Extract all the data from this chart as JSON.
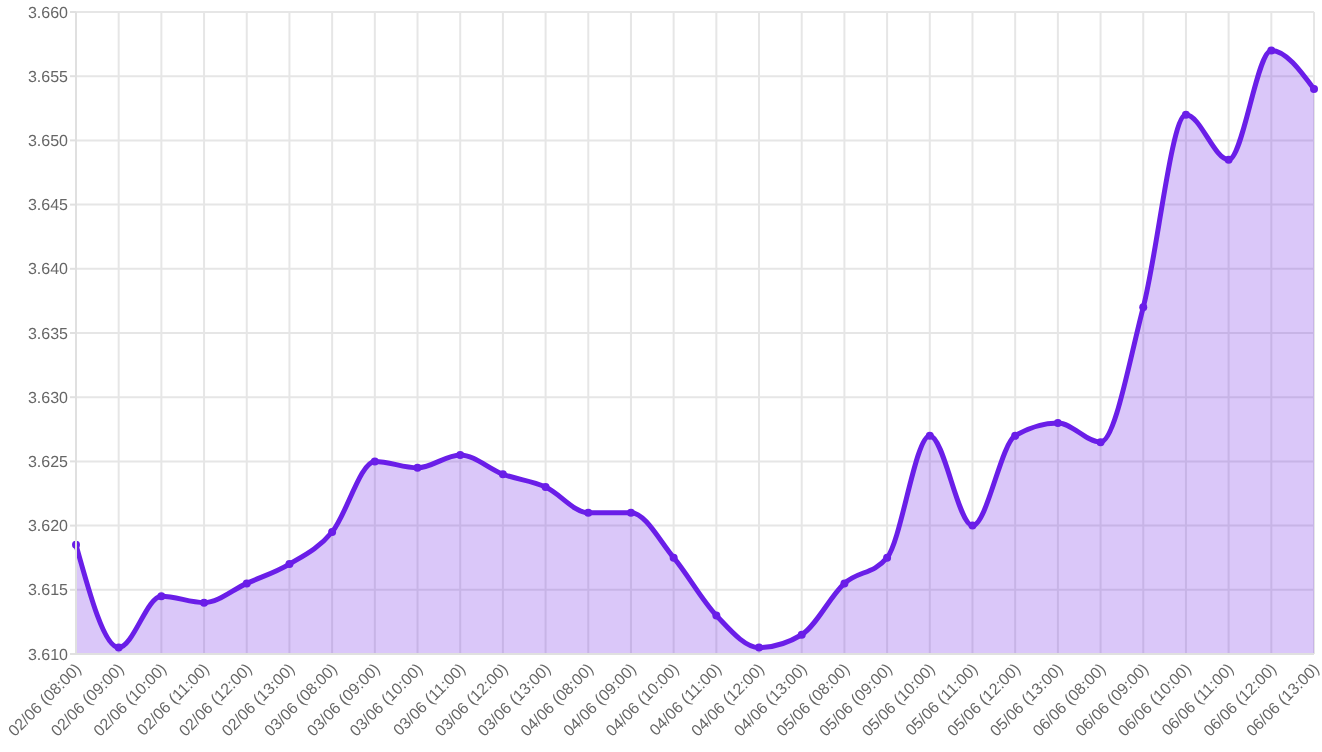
{
  "chart_data": {
    "type": "area",
    "categories": [
      "02/06 (08:00)",
      "02/06 (09:00)",
      "02/06 (10:00)",
      "02/06 (11:00)",
      "02/06 (12:00)",
      "02/06 (13:00)",
      "03/06 (08:00)",
      "03/06 (09:00)",
      "03/06 (10:00)",
      "03/06 (11:00)",
      "03/06 (12:00)",
      "03/06 (13:00)",
      "04/06 (08:00)",
      "04/06 (09:00)",
      "04/06 (10:00)",
      "04/06 (11:00)",
      "04/06 (12:00)",
      "04/06 (13:00)",
      "05/06 (08:00)",
      "05/06 (09:00)",
      "05/06 (10:00)",
      "05/06 (11:00)",
      "05/06 (12:00)",
      "05/06 (13:00)",
      "06/06 (08:00)",
      "06/06 (09:00)",
      "06/06 (10:00)",
      "06/06 (11:00)",
      "06/06 (12:00)",
      "06/06 (13:00)"
    ],
    "series": [
      {
        "color": "#6a1ee8",
        "values": [
          3.6185,
          3.6105,
          3.6145,
          3.614,
          3.6155,
          3.617,
          3.6195,
          3.625,
          3.6245,
          3.6255,
          3.624,
          3.623,
          3.621,
          3.621,
          3.6175,
          3.613,
          3.6105,
          3.6115,
          3.6155,
          3.6175,
          3.627,
          3.62,
          3.627,
          3.628,
          3.6265,
          3.637,
          3.652,
          3.6485,
          3.657,
          3.654
        ]
      }
    ],
    "ylim": [
      3.61,
      3.66
    ],
    "yticks": [
      {
        "value": 3.61,
        "label": "3.610"
      },
      {
        "value": 3.615,
        "label": "3.615"
      },
      {
        "value": 3.62,
        "label": "3.620"
      },
      {
        "value": 3.625,
        "label": "3.625"
      },
      {
        "value": 3.63,
        "label": "3.630"
      },
      {
        "value": 3.635,
        "label": "3.635"
      },
      {
        "value": 3.64,
        "label": "3.640"
      },
      {
        "value": 3.645,
        "label": "3.645"
      },
      {
        "value": 3.65,
        "label": "3.650"
      },
      {
        "value": 3.655,
        "label": "3.655"
      },
      {
        "value": 3.66,
        "label": "3.660"
      }
    ],
    "grid": true,
    "marker": "circle",
    "line_style": "solid"
  }
}
